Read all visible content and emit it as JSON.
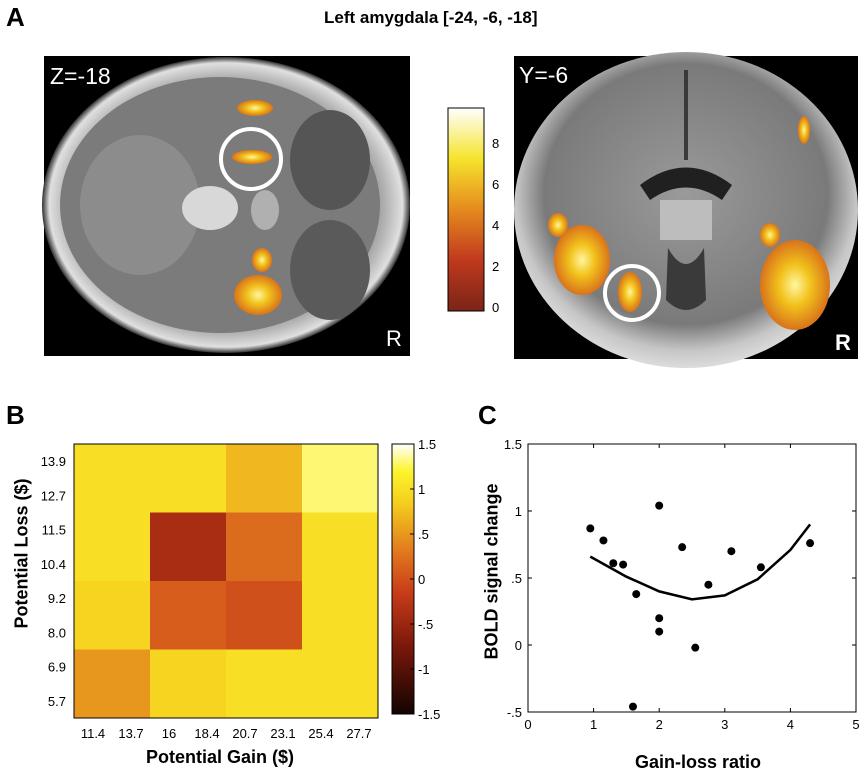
{
  "panel_a": {
    "letter": "A",
    "title": "Left amygdala [-24, -6, -18]",
    "left_slice_label": "Z=-18",
    "right_slice_label": "Y=-6",
    "orientation_label_left": "R",
    "orientation_label_right": "R",
    "colorbar_ticks": [
      "8",
      "6",
      "4",
      "2",
      "0"
    ]
  },
  "panel_b": {
    "letter": "B",
    "colorbar_ticks": [
      "1.5",
      "1",
      ".5",
      "0",
      "-.5",
      "-1",
      "-1.5"
    ]
  },
  "panel_c": {
    "letter": "C"
  },
  "chart_data": [
    {
      "type": "heatmap",
      "xlabel": "Potential Gain ($)",
      "ylabel": "Potential Loss ($)",
      "x_tick_labels": [
        "11.4",
        "13.7",
        "16",
        "18.4",
        "20.7",
        "23.1",
        "25.4",
        "27.7"
      ],
      "y_tick_labels": [
        "13.9",
        "12.7",
        "11.5",
        "10.4",
        "9.2",
        "8.0",
        "6.9",
        "5.7"
      ],
      "grid_values": [
        [
          1.0,
          1.0,
          0.7,
          1.3
        ],
        [
          1.0,
          -0.4,
          0.2,
          1.0
        ],
        [
          0.9,
          0.1,
          0.0,
          1.0
        ],
        [
          0.5,
          0.9,
          1.0,
          1.0
        ]
      ],
      "colorbar_range": [
        -1.5,
        1.5
      ]
    },
    {
      "type": "scatter",
      "xlabel": "Gain-loss ratio",
      "ylabel": "BOLD signal change",
      "xlim": [
        0,
        5
      ],
      "ylim": [
        -0.5,
        1.5
      ],
      "x_tick_labels": [
        "0",
        "1",
        "2",
        "3",
        "4",
        "5"
      ],
      "y_tick_labels": [
        "1.5",
        "1",
        ".5",
        "0",
        "-.5"
      ],
      "points": [
        [
          0.95,
          0.87
        ],
        [
          1.15,
          0.78
        ],
        [
          1.3,
          0.61
        ],
        [
          1.45,
          0.6
        ],
        [
          1.6,
          -0.46
        ],
        [
          1.65,
          0.38
        ],
        [
          2.0,
          1.04
        ],
        [
          2.0,
          0.2
        ],
        [
          2.0,
          0.1
        ],
        [
          2.35,
          0.73
        ],
        [
          2.55,
          -0.02
        ],
        [
          2.75,
          0.45
        ],
        [
          3.1,
          0.7
        ],
        [
          3.55,
          0.58
        ],
        [
          4.3,
          0.76
        ]
      ],
      "fit_curve": [
        [
          0.95,
          0.66
        ],
        [
          1.5,
          0.51
        ],
        [
          2.0,
          0.4
        ],
        [
          2.5,
          0.34
        ],
        [
          3.0,
          0.37
        ],
        [
          3.5,
          0.49
        ],
        [
          4.0,
          0.71
        ],
        [
          4.3,
          0.9
        ]
      ]
    }
  ]
}
